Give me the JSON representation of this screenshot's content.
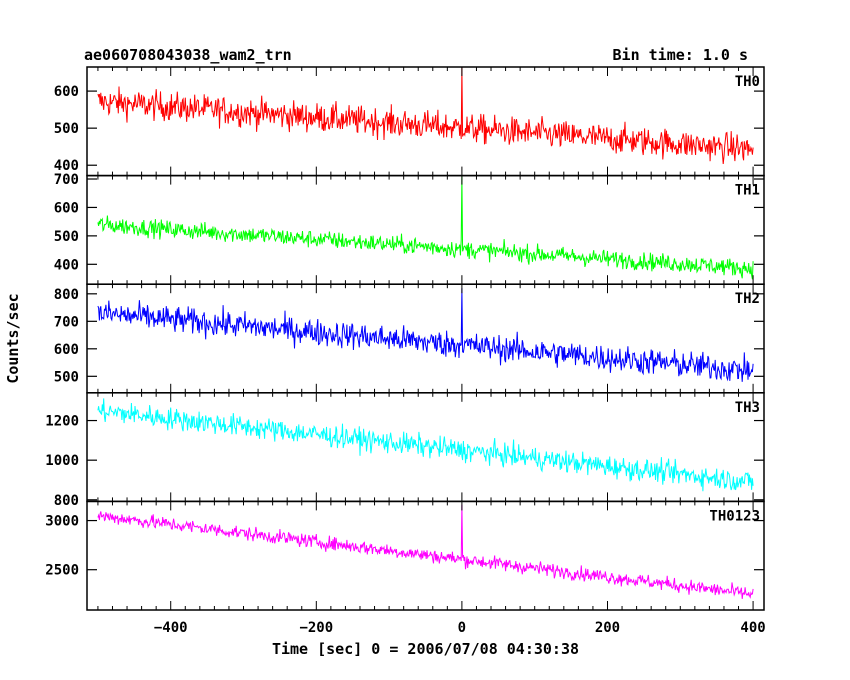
{
  "header": {
    "title": "ae060708043038_wam2_trn",
    "bin_time": "Bin time: 1.0 s"
  },
  "chart_data": {
    "type": "line",
    "xlabel": "Time [sec] 0 = 2006/07/08 04:30:38",
    "ylabel": "Counts/sec",
    "xlim": [
      -515,
      415
    ],
    "x_ticks": [
      -400,
      -200,
      0,
      200,
      400
    ],
    "x_range": [
      -500,
      400
    ],
    "bin_time_s": 1.0,
    "panels": [
      {
        "name": "TH0",
        "color": "#ff0000",
        "ylim": [
          372,
          665
        ],
        "yticks": [
          400,
          500,
          600
        ],
        "trend_start": 572,
        "trend_end": 443,
        "noise": 28,
        "spike_x": 0,
        "spike_peak": 665
      },
      {
        "name": "TH1",
        "color": "#00ff00",
        "ylim": [
          330,
          712
        ],
        "yticks": [
          400,
          500,
          600,
          700
        ],
        "trend_start": 540,
        "trend_end": 385,
        "noise": 22,
        "spike_x": 0,
        "spike_peak": 710
      },
      {
        "name": "TH2",
        "color": "#0000ff",
        "ylim": [
          440,
          835
        ],
        "yticks": [
          500,
          600,
          700,
          800
        ],
        "trend_start": 730,
        "trend_end": 520,
        "noise": 35,
        "spike_x": 0,
        "spike_peak": 820
      },
      {
        "name": "TH3",
        "color": "#00ffff",
        "ylim": [
          792,
          1340
        ],
        "yticks": [
          800,
          1000,
          1200
        ],
        "trend_start": 1250,
        "trend_end": 890,
        "noise": 40,
        "spike_x": null,
        "spike_peak": null
      },
      {
        "name": "TH0123",
        "color": "#ff00ff",
        "ylim": [
          2090,
          3195
        ],
        "yticks": [
          2500,
          3000
        ],
        "trend_start": 3050,
        "trend_end": 2250,
        "noise": 50,
        "spike_x": 0,
        "spike_peak": 3160
      }
    ]
  }
}
